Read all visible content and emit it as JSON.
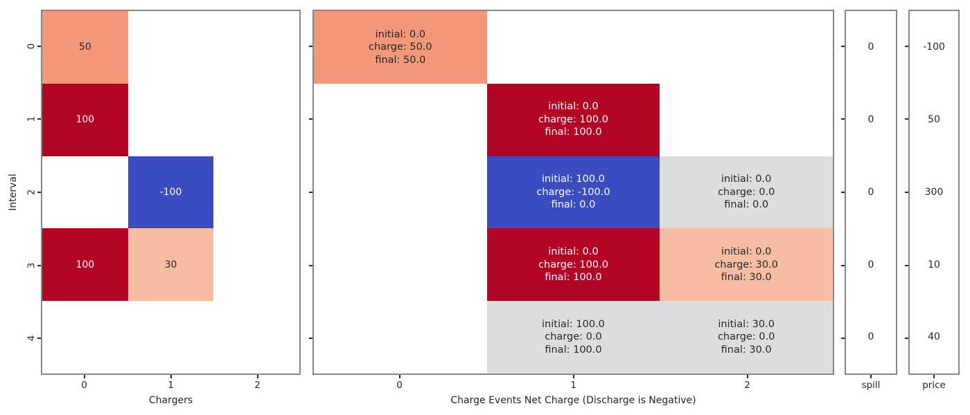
{
  "figure": {
    "background": "#ffffff",
    "spine_color": "#868686",
    "tick_color": "#262626",
    "text_color": "#262626"
  },
  "palette": {
    "charge_neg100": "#3b4cc0",
    "charge_0": "#dddddd",
    "charge_30": "#f6bda2",
    "charge_50": "#f3987a",
    "charge_100": "#b40426",
    "empty": "#ffffff",
    "annot_dark": "#262626",
    "annot_light": "#ffffff"
  },
  "chart_data": [
    {
      "name": "chargers",
      "type": "heatmap",
      "title": "",
      "xlabel": "Chargers",
      "ylabel": "Interval",
      "x_ticks": [
        "0",
        "1",
        "2"
      ],
      "y_tick_labels": [
        "0",
        "1",
        "2",
        "3",
        "4"
      ],
      "rows": 5,
      "cols": 3,
      "matrix": [
        [
          50,
          null,
          null
        ],
        [
          100,
          null,
          null
        ],
        [
          null,
          -100,
          null
        ],
        [
          100,
          30,
          null
        ],
        [
          null,
          null,
          null
        ]
      ],
      "cells": [
        {
          "row": 0,
          "col": 0,
          "value": 50,
          "lines": [
            "50"
          ],
          "color": "#f3987a",
          "text_color": "#262626"
        },
        {
          "row": 1,
          "col": 0,
          "value": 100,
          "lines": [
            "100"
          ],
          "color": "#b40426",
          "text_color": "#ffffff"
        },
        {
          "row": 2,
          "col": 1,
          "value": -100,
          "lines": [
            "-100"
          ],
          "color": "#3b4cc0",
          "text_color": "#ffffff"
        },
        {
          "row": 3,
          "col": 0,
          "value": 100,
          "lines": [
            "100"
          ],
          "color": "#b40426",
          "text_color": "#ffffff"
        },
        {
          "row": 3,
          "col": 1,
          "value": 30,
          "lines": [
            "30"
          ],
          "color": "#f6bda2",
          "text_color": "#262626"
        }
      ]
    },
    {
      "name": "events",
      "type": "heatmap",
      "title": "",
      "xlabel": "Charge Events Net Charge (Discharge is Negative)",
      "ylabel": "",
      "x_ticks": [
        "0",
        "1",
        "2"
      ],
      "rows": 5,
      "cols": 3,
      "cells": [
        {
          "row": 0,
          "col": 0,
          "initial": 0,
          "charge": 50,
          "final": 50,
          "lines": [
            "initial: 0.0",
            "charge: 50.0",
            "final: 50.0"
          ],
          "color": "#f3987a",
          "text_color": "#262626"
        },
        {
          "row": 1,
          "col": 1,
          "initial": 0,
          "charge": 100,
          "final": 100,
          "lines": [
            "initial: 0.0",
            "charge: 100.0",
            "final: 100.0"
          ],
          "color": "#b40426",
          "text_color": "#ffffff"
        },
        {
          "row": 2,
          "col": 1,
          "initial": 100,
          "charge": -100,
          "final": 0,
          "lines": [
            "initial: 100.0",
            "charge: -100.0",
            "final: 0.0"
          ],
          "color": "#3b4cc0",
          "text_color": "#ffffff"
        },
        {
          "row": 2,
          "col": 2,
          "initial": 0,
          "charge": 0,
          "final": 0,
          "lines": [
            "initial: 0.0",
            "charge: 0.0",
            "final: 0.0"
          ],
          "color": "#dddddd",
          "text_color": "#262626"
        },
        {
          "row": 3,
          "col": 1,
          "initial": 0,
          "charge": 100,
          "final": 100,
          "lines": [
            "initial: 0.0",
            "charge: 100.0",
            "final: 100.0"
          ],
          "color": "#b40426",
          "text_color": "#ffffff"
        },
        {
          "row": 3,
          "col": 2,
          "initial": 0,
          "charge": 30,
          "final": 30,
          "lines": [
            "initial: 0.0",
            "charge: 30.0",
            "final: 30.0"
          ],
          "color": "#f6bda2",
          "text_color": "#262626"
        },
        {
          "row": 4,
          "col": 1,
          "initial": 100,
          "charge": 0,
          "final": 100,
          "lines": [
            "initial: 100.0",
            "charge: 0.0",
            "final: 100.0"
          ],
          "color": "#dddddd",
          "text_color": "#262626"
        },
        {
          "row": 4,
          "col": 2,
          "initial": 30,
          "charge": 0,
          "final": 30,
          "lines": [
            "initial: 30.0",
            "charge: 0.0",
            "final: 30.0"
          ],
          "color": "#dddddd",
          "text_color": "#262626"
        }
      ]
    },
    {
      "name": "spill",
      "type": "heatmap",
      "title": "",
      "xlabel": "",
      "ylabel": "",
      "x_ticks": [
        "spill"
      ],
      "rows": 5,
      "cols": 1,
      "values": [
        0,
        0,
        0,
        0,
        0
      ],
      "cells": [
        {
          "row": 0,
          "col": 0,
          "value": 0,
          "lines": [
            "0"
          ],
          "color": "#ffffff",
          "text_color": "#262626"
        },
        {
          "row": 1,
          "col": 0,
          "value": 0,
          "lines": [
            "0"
          ],
          "color": "#ffffff",
          "text_color": "#262626"
        },
        {
          "row": 2,
          "col": 0,
          "value": 0,
          "lines": [
            "0"
          ],
          "color": "#ffffff",
          "text_color": "#262626"
        },
        {
          "row": 3,
          "col": 0,
          "value": 0,
          "lines": [
            "0"
          ],
          "color": "#ffffff",
          "text_color": "#262626"
        },
        {
          "row": 4,
          "col": 0,
          "value": 0,
          "lines": [
            "0"
          ],
          "color": "#ffffff",
          "text_color": "#262626"
        }
      ]
    },
    {
      "name": "price",
      "type": "heatmap",
      "title": "",
      "xlabel": "",
      "ylabel": "",
      "x_ticks": [
        "price"
      ],
      "rows": 5,
      "cols": 1,
      "values": [
        -100,
        50,
        300,
        10,
        40
      ],
      "cells": [
        {
          "row": 0,
          "col": 0,
          "value": -100,
          "lines": [
            "-100"
          ],
          "color": "#ffffff",
          "text_color": "#262626"
        },
        {
          "row": 1,
          "col": 0,
          "value": 50,
          "lines": [
            "50"
          ],
          "color": "#ffffff",
          "text_color": "#262626"
        },
        {
          "row": 2,
          "col": 0,
          "value": 300,
          "lines": [
            "300"
          ],
          "color": "#ffffff",
          "text_color": "#262626"
        },
        {
          "row": 3,
          "col": 0,
          "value": 10,
          "lines": [
            "10"
          ],
          "color": "#ffffff",
          "text_color": "#262626"
        },
        {
          "row": 4,
          "col": 0,
          "value": 40,
          "lines": [
            "40"
          ],
          "color": "#ffffff",
          "text_color": "#262626"
        }
      ]
    }
  ]
}
